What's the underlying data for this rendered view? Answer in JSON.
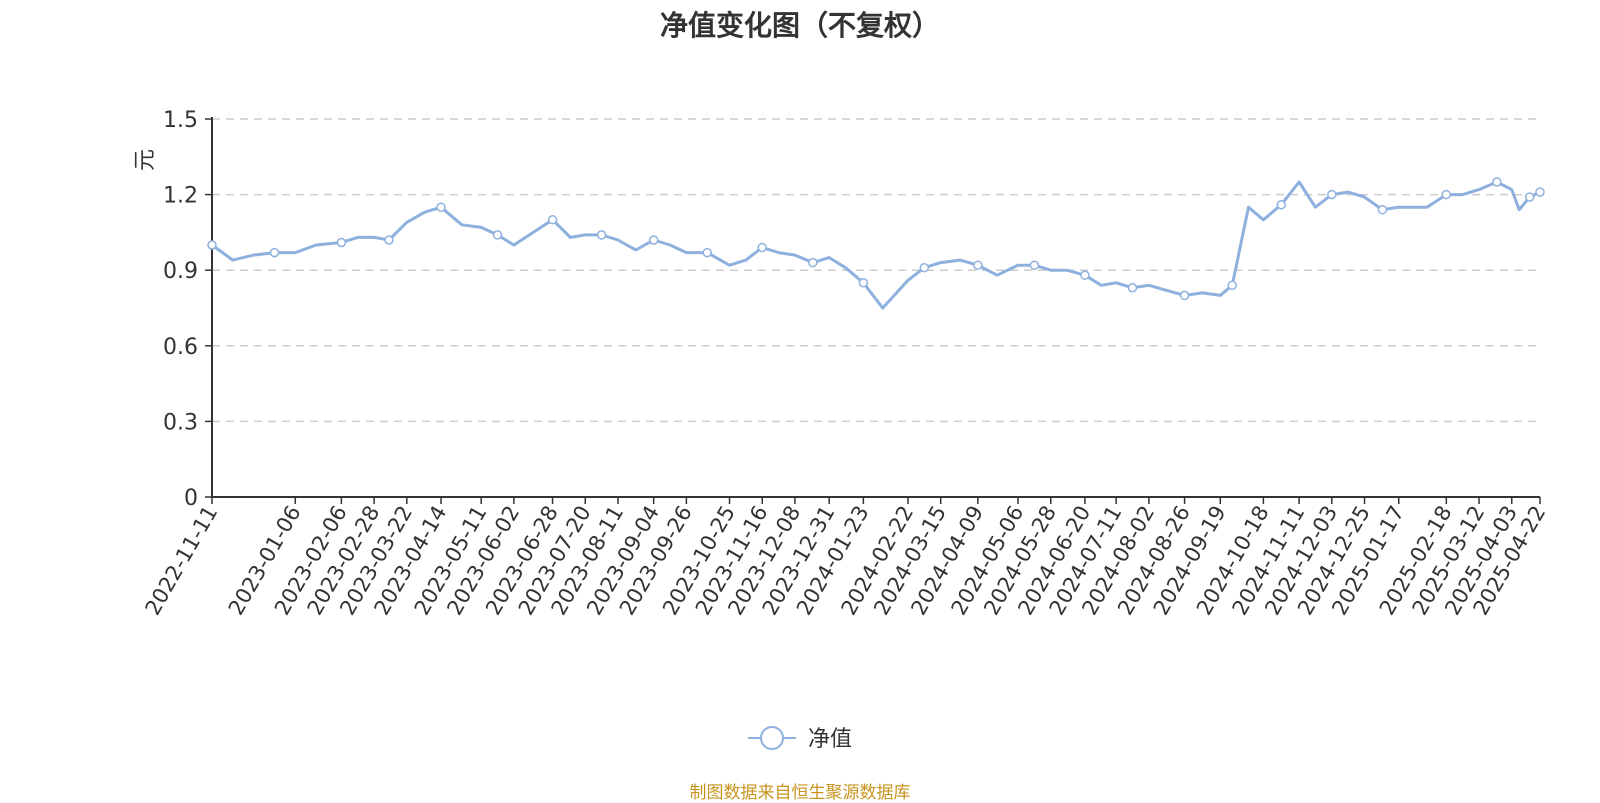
{
  "chart_data": {
    "type": "line",
    "title": "净值变化图（不复权）",
    "ylabel": "元",
    "xlabel": "",
    "ylim": [
      0,
      1.5
    ],
    "yticks": [
      "0",
      "0.3",
      "0.6",
      "0.9",
      "1.2",
      "1.5"
    ],
    "y_grid": true,
    "legend": "bottom-center",
    "series_color": "#8eb0de",
    "xtick_labels": [
      "2022-11-11",
      "2023-01-06",
      "2023-02-06",
      "2023-02-28",
      "2023-03-22",
      "2023-04-14",
      "2023-05-11",
      "2023-06-02",
      "2023-06-28",
      "2023-07-20",
      "2023-08-11",
      "2023-09-04",
      "2023-09-26",
      "2023-10-25",
      "2023-11-16",
      "2023-12-08",
      "2023-12-31",
      "2024-01-23",
      "2024-02-22",
      "2024-03-15",
      "2024-04-09",
      "2024-05-06",
      "2024-05-28",
      "2024-06-20",
      "2024-07-11",
      "2024-08-02",
      "2024-08-26",
      "2024-09-19",
      "2024-10-18",
      "2024-11-11",
      "2024-12-03",
      "2024-12-25",
      "2025-01-17",
      "2025-02-18",
      "2025-03-12",
      "2025-04-03",
      "2025-04-22"
    ],
    "series": [
      {
        "name": "净值",
        "x": [
          "2022-11-11",
          "2022-11-25",
          "2022-12-09",
          "2022-12-23",
          "2023-01-06",
          "2023-01-20",
          "2023-02-06",
          "2023-02-17",
          "2023-02-28",
          "2023-03-10",
          "2023-03-22",
          "2023-04-03",
          "2023-04-14",
          "2023-04-28",
          "2023-05-11",
          "2023-05-22",
          "2023-06-02",
          "2023-06-15",
          "2023-06-28",
          "2023-07-10",
          "2023-07-20",
          "2023-07-31",
          "2023-08-11",
          "2023-08-23",
          "2023-09-04",
          "2023-09-15",
          "2023-09-26",
          "2023-10-10",
          "2023-10-25",
          "2023-11-05",
          "2023-11-16",
          "2023-11-27",
          "2023-12-08",
          "2023-12-20",
          "2023-12-31",
          "2024-01-11",
          "2024-01-23",
          "2024-02-05",
          "2024-02-22",
          "2024-03-04",
          "2024-03-15",
          "2024-03-28",
          "2024-04-09",
          "2024-04-22",
          "2024-05-06",
          "2024-05-17",
          "2024-05-28",
          "2024-06-08",
          "2024-06-20",
          "2024-07-01",
          "2024-07-11",
          "2024-07-22",
          "2024-08-02",
          "2024-08-14",
          "2024-08-26",
          "2024-09-07",
          "2024-09-19",
          "2024-09-27",
          "2024-10-08",
          "2024-10-18",
          "2024-10-30",
          "2024-11-11",
          "2024-11-22",
          "2024-12-03",
          "2024-12-14",
          "2024-12-25",
          "2025-01-06",
          "2025-01-17",
          "2025-02-05",
          "2025-02-18",
          "2025-03-01",
          "2025-03-12",
          "2025-03-24",
          "2025-04-03",
          "2025-04-08",
          "2025-04-15",
          "2025-04-22"
        ],
        "values": [
          1.0,
          0.94,
          0.96,
          0.97,
          0.97,
          1.0,
          1.01,
          1.03,
          1.03,
          1.02,
          1.09,
          1.13,
          1.15,
          1.08,
          1.07,
          1.04,
          1.0,
          1.05,
          1.1,
          1.03,
          1.04,
          1.04,
          1.02,
          0.98,
          1.02,
          1.0,
          0.97,
          0.97,
          0.92,
          0.94,
          0.99,
          0.97,
          0.96,
          0.93,
          0.95,
          0.91,
          0.85,
          0.75,
          0.86,
          0.91,
          0.93,
          0.94,
          0.92,
          0.88,
          0.92,
          0.92,
          0.9,
          0.9,
          0.88,
          0.84,
          0.85,
          0.83,
          0.84,
          0.82,
          0.8,
          0.81,
          0.8,
          0.84,
          1.15,
          1.1,
          1.16,
          1.25,
          1.15,
          1.2,
          1.21,
          1.19,
          1.14,
          1.15,
          1.15,
          1.2,
          1.2,
          1.22,
          1.25,
          1.22,
          1.14,
          1.19,
          1.21
        ]
      }
    ]
  },
  "source_note": "制图数据来自恒生聚源数据库"
}
